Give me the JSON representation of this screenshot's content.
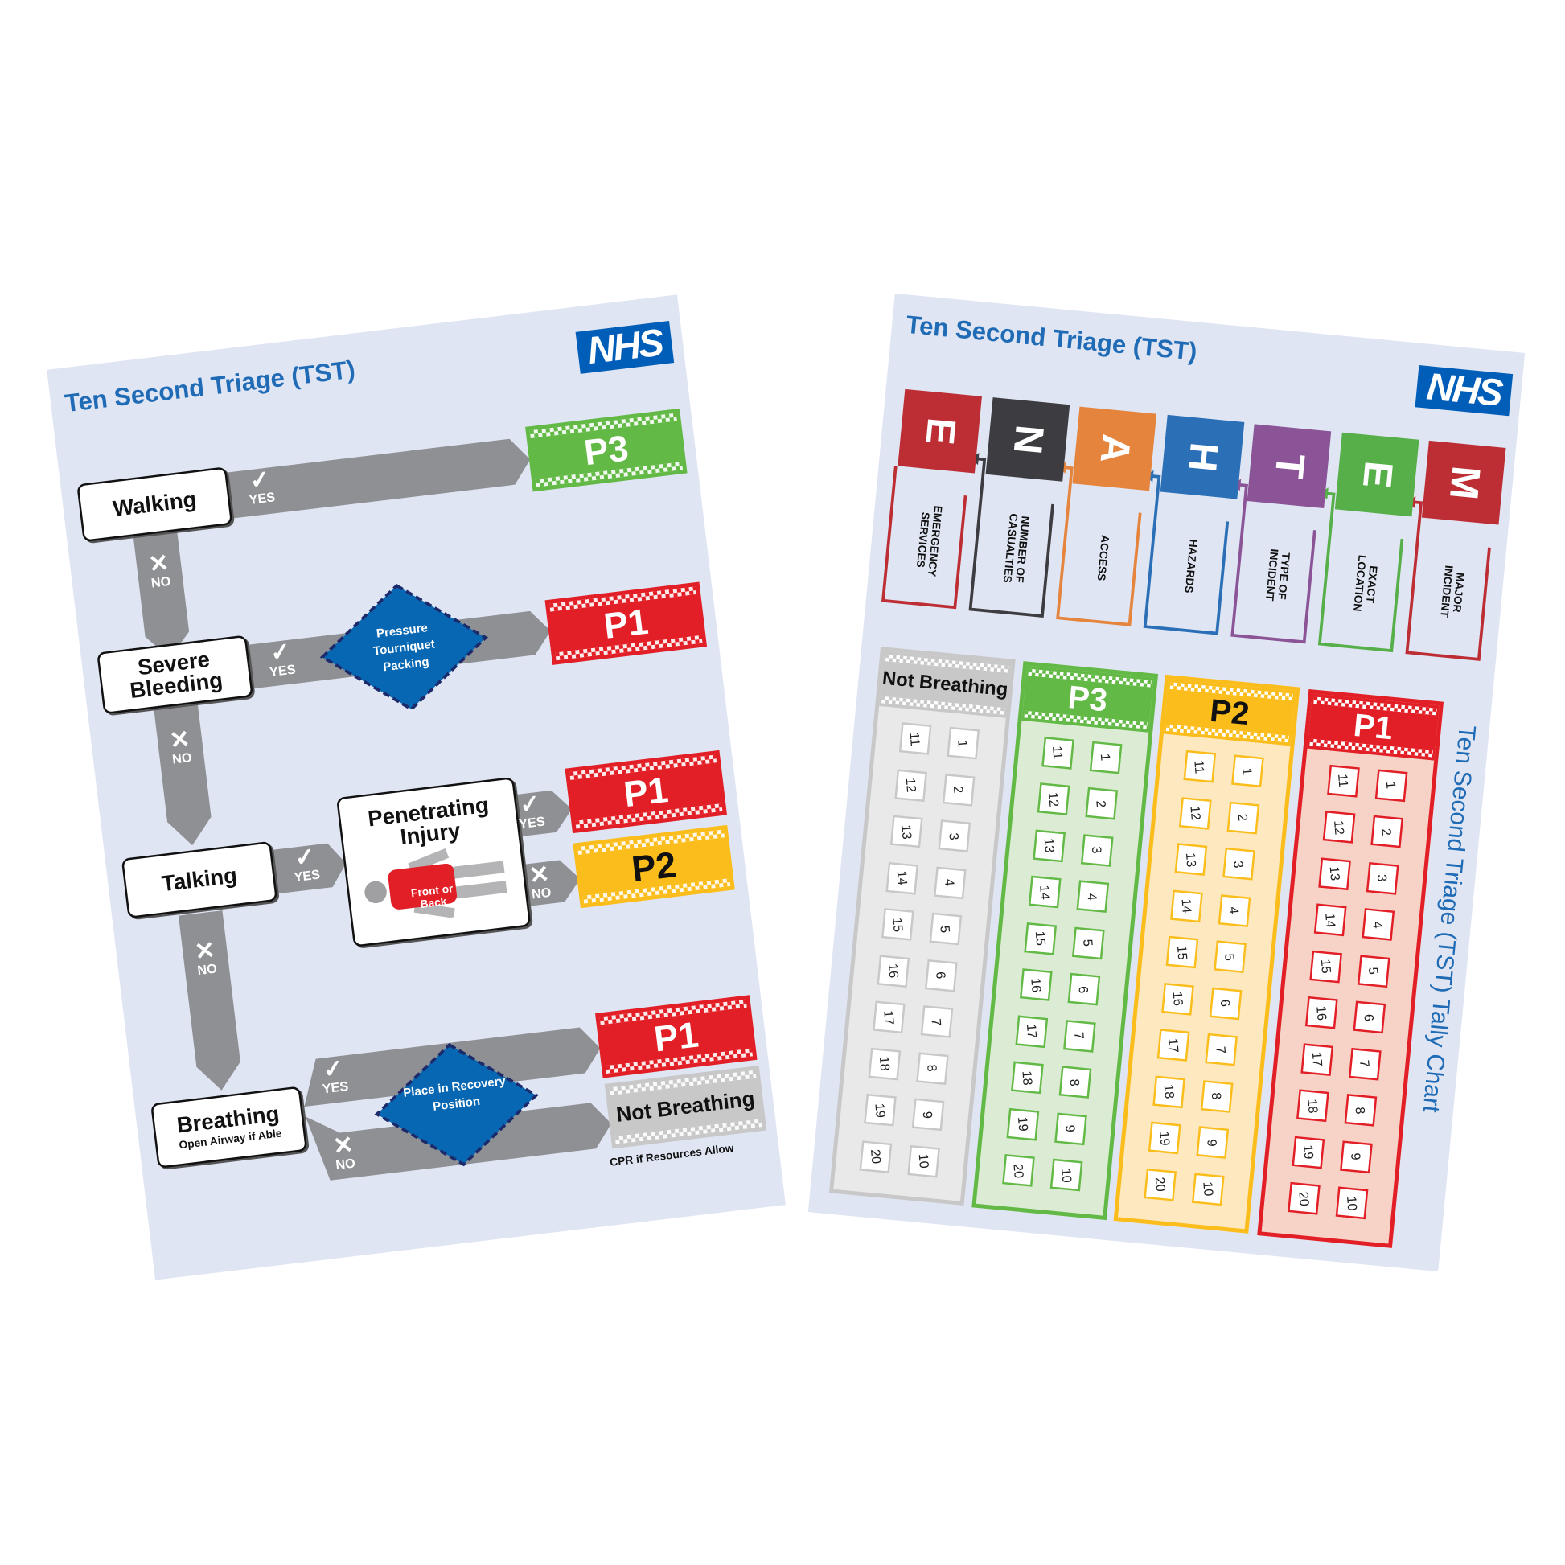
{
  "left_card": {
    "title": "Ten Second Triage (TST)",
    "logo": "NHS",
    "walking": "Walking",
    "severe_bleeding": "Severe Bleeding",
    "talking": "Talking",
    "breathing": "Breathing",
    "breathing_sub": "Open Airway if Able",
    "penetrating_injury": "Penetrating Injury",
    "front_or_back": "Front or Back",
    "bleeding_action": "Pressure Tourniquet Packing",
    "breathing_action": "Place in Recovery Position",
    "yes": "YES",
    "no": "NO",
    "outcomes": {
      "walking_yes": "P3",
      "bleeding_yes": "P1",
      "injury_yes": "P1",
      "injury_no": "P2",
      "breathing_yes": "P1",
      "breathing_no": "Not Breathing"
    },
    "cpr_note": "CPR if Resources Allow"
  },
  "right_card": {
    "title": "Ten Second Triage (TST)",
    "logo": "NHS",
    "ethane": [
      {
        "letter": "E",
        "label": "EMERGENCY SERVICES",
        "color": "#bd2e34"
      },
      {
        "letter": "N",
        "label": "NUMBER OF CASUALTIES",
        "color": "#3d3c40"
      },
      {
        "letter": "A",
        "label": "ACCESS",
        "color": "#e5843c"
      },
      {
        "letter": "H",
        "label": "HAZARDS",
        "color": "#2b6fb6"
      },
      {
        "letter": "T",
        "label": "TYPE OF INCIDENT",
        "color": "#8a5496"
      },
      {
        "letter": "E",
        "label": "EXACT LOCATION",
        "color": "#56af48"
      },
      {
        "letter": "M",
        "label": "MAJOR INCIDENT",
        "color": "#bd2e34"
      }
    ],
    "tally_columns": [
      {
        "header": "Not Breathing",
        "color": "#c8c8c9",
        "bg": "#e9e9ea",
        "text": "#111111",
        "left_numbers": [
          "11",
          "12",
          "13",
          "14",
          "15",
          "16",
          "17",
          "18",
          "19",
          "20"
        ],
        "right_numbers": [
          "1",
          "2",
          "3",
          "4",
          "5",
          "6",
          "7",
          "8",
          "9",
          "10"
        ]
      },
      {
        "header": "P3",
        "color": "#63b946",
        "bg": "#dcecd4",
        "text": "#ffffff",
        "left_numbers": [
          "11",
          "12",
          "13",
          "14",
          "15",
          "16",
          "17",
          "18",
          "19",
          "20"
        ],
        "right_numbers": [
          "1",
          "2",
          "3",
          "4",
          "5",
          "6",
          "7",
          "8",
          "9",
          "10"
        ]
      },
      {
        "header": "P2",
        "color": "#fbbd1b",
        "bg": "#fde8c0",
        "text": "#111111",
        "left_numbers": [
          "11",
          "12",
          "13",
          "14",
          "15",
          "16",
          "17",
          "18",
          "19",
          "20"
        ],
        "right_numbers": [
          "1",
          "2",
          "3",
          "4",
          "5",
          "6",
          "7",
          "8",
          "9",
          "10"
        ]
      },
      {
        "header": "P1",
        "color": "#e21f26",
        "bg": "#f6d3c6",
        "text": "#ffffff",
        "left_numbers": [
          "11",
          "12",
          "13",
          "14",
          "15",
          "16",
          "17",
          "18",
          "19",
          "20"
        ],
        "right_numbers": [
          "1",
          "2",
          "3",
          "4",
          "5",
          "6",
          "7",
          "8",
          "9",
          "10"
        ]
      }
    ],
    "side_title": "Ten Second Triage (TST) Tally Chart"
  },
  "colors": {
    "p1": "#e21f26",
    "p2": "#fbbd1b",
    "p3": "#63b946",
    "arrow": "#8f9093",
    "action": "#0867b3",
    "nhs": "#005eb8",
    "title": "#1f6bb5"
  }
}
